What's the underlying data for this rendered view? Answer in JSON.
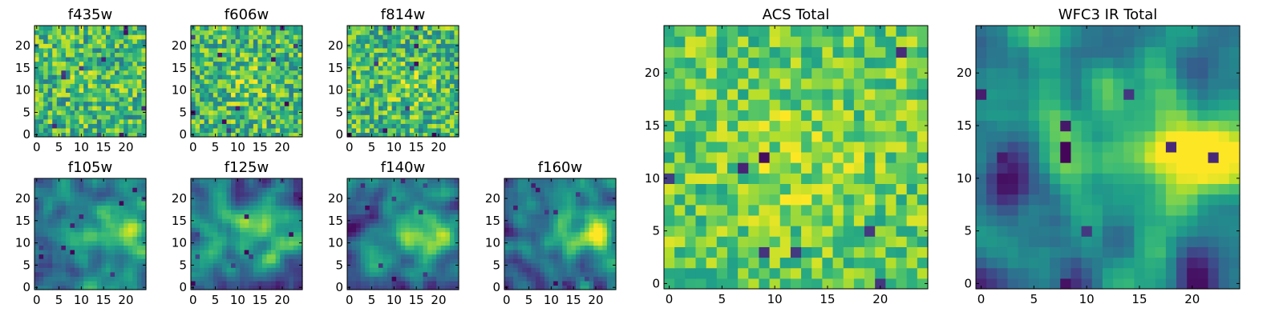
{
  "chart_data": [
    {
      "type": "heatmap",
      "title": "f435w",
      "size": 25,
      "xticks": [
        0,
        5,
        10,
        15,
        20
      ],
      "yticks": [
        0,
        5,
        10,
        15,
        20
      ],
      "xlim": [
        0,
        24
      ],
      "ylim": [
        0,
        24
      ],
      "colormap": "viridis",
      "texture": "noise",
      "seed": 11,
      "blobs": [
        [
          12,
          13,
          3,
          0.05
        ]
      ]
    },
    {
      "type": "heatmap",
      "title": "f606w",
      "size": 25,
      "xticks": [
        0,
        5,
        10,
        15,
        20
      ],
      "yticks": [
        0,
        5,
        10,
        15,
        20
      ],
      "xlim": [
        0,
        24
      ],
      "ylim": [
        0,
        24
      ],
      "colormap": "viridis",
      "texture": "noise",
      "seed": 23,
      "blobs": [
        [
          12,
          12,
          3,
          0.15
        ]
      ]
    },
    {
      "type": "heatmap",
      "title": "f814w",
      "size": 25,
      "xticks": [
        0,
        5,
        10,
        15,
        20
      ],
      "yticks": [
        0,
        5,
        10,
        15,
        20
      ],
      "xlim": [
        0,
        24
      ],
      "ylim": [
        0,
        24
      ],
      "colormap": "viridis",
      "texture": "noise",
      "seed": 37,
      "blobs": [
        [
          14,
          11,
          3,
          0.15
        ]
      ]
    },
    {
      "type": "heatmap",
      "title": "f105w",
      "size": 25,
      "xticks": [
        0,
        5,
        10,
        15,
        20
      ],
      "yticks": [
        0,
        5,
        10,
        15,
        20
      ],
      "xlim": [
        0,
        24
      ],
      "ylim": [
        0,
        24
      ],
      "colormap": "viridis",
      "texture": "smooth",
      "seed": 41,
      "blobs": [
        [
          14,
          12,
          5,
          0.3
        ],
        [
          22,
          12,
          3,
          0.35
        ]
      ]
    },
    {
      "type": "heatmap",
      "title": "f125w",
      "size": 25,
      "xticks": [
        0,
        5,
        10,
        15,
        20
      ],
      "yticks": [
        0,
        5,
        10,
        15,
        20
      ],
      "xlim": [
        0,
        24
      ],
      "ylim": [
        0,
        24
      ],
      "colormap": "viridis",
      "texture": "smooth",
      "seed": 53,
      "blobs": [
        [
          14,
          14,
          5,
          0.3
        ],
        [
          22,
          11,
          3,
          0.4
        ]
      ]
    },
    {
      "type": "heatmap",
      "title": "f140w",
      "size": 25,
      "xticks": [
        0,
        5,
        10,
        15,
        20
      ],
      "yticks": [
        0,
        5,
        10,
        15,
        20
      ],
      "xlim": [
        0,
        24
      ],
      "ylim": [
        0,
        24
      ],
      "colormap": "viridis",
      "texture": "smooth",
      "seed": 67,
      "blobs": [
        [
          13,
          13,
          4,
          0.3
        ],
        [
          20,
          12,
          3,
          0.45
        ]
      ]
    },
    {
      "type": "heatmap",
      "title": "f160w",
      "size": 25,
      "xticks": [
        0,
        5,
        10,
        15,
        20
      ],
      "yticks": [
        0,
        5,
        10,
        15,
        20
      ],
      "xlim": [
        0,
        24
      ],
      "ylim": [
        0,
        24
      ],
      "colormap": "viridis",
      "texture": "smooth",
      "seed": 79,
      "blobs": [
        [
          13,
          13,
          4,
          0.3
        ],
        [
          20,
          12,
          3,
          0.5
        ]
      ]
    },
    {
      "type": "heatmap",
      "title": "ACS Total",
      "size": 25,
      "xticks": [
        0,
        5,
        10,
        15,
        20
      ],
      "yticks": [
        0,
        5,
        10,
        15,
        20
      ],
      "xlim": [
        0,
        24
      ],
      "ylim": [
        0,
        24
      ],
      "colormap": "viridis",
      "texture": "bright",
      "seed": 97,
      "blobs": [
        [
          12,
          12,
          4,
          0.1
        ]
      ]
    },
    {
      "type": "heatmap",
      "title": "WFC3 IR Total",
      "size": 25,
      "xticks": [
        0,
        5,
        10,
        15,
        20
      ],
      "yticks": [
        0,
        5,
        10,
        15,
        20
      ],
      "xlim": [
        0,
        24
      ],
      "ylim": [
        0,
        24
      ],
      "colormap": "viridis",
      "texture": "smooth",
      "seed": 131,
      "blobs": [
        [
          13,
          14,
          6,
          0.3
        ],
        [
          21,
          12,
          4,
          0.55
        ],
        [
          3,
          10,
          2,
          -0.5
        ]
      ]
    }
  ]
}
